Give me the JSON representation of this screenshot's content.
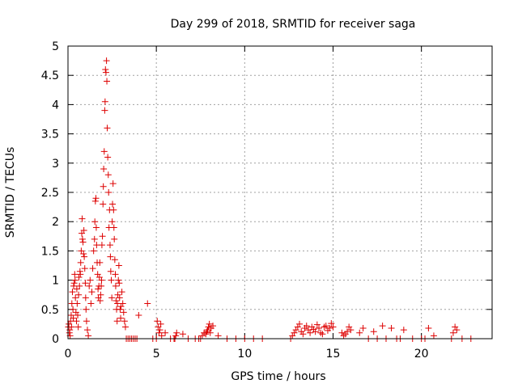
{
  "chart_data": {
    "type": "scatter",
    "title": "Day 299 of 2018, SRMTID for receiver saga",
    "xlabel": "GPS time / hours",
    "ylabel": "SRMTID / TECUs",
    "xlim": [
      0,
      24
    ],
    "ylim": [
      0,
      5
    ],
    "x_ticks": [
      0,
      5,
      10,
      15,
      20
    ],
    "y_ticks": [
      0,
      0.5,
      1,
      1.5,
      2,
      2.5,
      3,
      3.5,
      4,
      4.5,
      5
    ],
    "x_tick_labels": [
      "0",
      "5",
      "10",
      "15",
      "20"
    ],
    "y_tick_labels": [
      "0",
      "0.5",
      "1",
      "1.5",
      "2",
      "2.5",
      "3",
      "3.5",
      "4",
      "4.5",
      "5"
    ],
    "grid": true,
    "marker": "+",
    "series": [
      {
        "name": "SRMTID",
        "color": "#dd0000",
        "x": [
          0.02,
          0.05,
          0.08,
          0.1,
          0.12,
          0.15,
          0.18,
          0.2,
          0.22,
          0.25,
          0.28,
          0.3,
          0.32,
          0.35,
          0.38,
          0.4,
          0.42,
          0.45,
          0.48,
          0.5,
          0.52,
          0.55,
          0.58,
          0.6,
          0.62,
          0.65,
          0.68,
          0.7,
          0.72,
          0.75,
          0.78,
          0.8,
          0.82,
          0.85,
          0.88,
          0.9,
          0.92,
          0.95,
          0.98,
          1.0,
          1.02,
          1.05,
          1.1,
          1.15,
          1.2,
          1.25,
          1.3,
          1.35,
          1.4,
          1.45,
          1.5,
          1.52,
          1.55,
          1.58,
          1.6,
          1.62,
          1.65,
          1.68,
          1.7,
          1.72,
          1.75,
          1.78,
          1.8,
          1.82,
          1.85,
          1.88,
          1.9,
          1.92,
          1.95,
          1.98,
          2.0,
          2.02,
          2.05,
          2.08,
          2.1,
          2.12,
          2.15,
          2.18,
          2.2,
          2.22,
          2.25,
          2.28,
          2.3,
          2.32,
          2.35,
          2.38,
          2.4,
          2.42,
          2.45,
          2.48,
          2.5,
          2.52,
          2.55,
          2.58,
          2.6,
          2.62,
          2.65,
          2.68,
          2.7,
          2.72,
          2.75,
          2.78,
          2.8,
          2.82,
          2.85,
          2.88,
          2.9,
          2.92,
          2.95,
          2.98,
          3.0,
          3.05,
          3.1,
          3.15,
          3.2,
          3.25,
          3.3,
          3.4,
          3.5,
          3.6,
          3.7,
          3.8,
          3.9,
          4.0,
          4.5,
          4.8,
          5.0,
          5.05,
          5.1,
          5.15,
          5.2,
          5.25,
          5.3,
          5.5,
          5.8,
          6.0,
          6.05,
          6.1,
          6.15,
          6.5,
          6.8,
          7.2,
          7.4,
          7.5,
          7.6,
          7.7,
          7.8,
          7.85,
          7.9,
          7.95,
          8.0,
          8.05,
          8.1,
          8.2,
          8.5,
          9.0,
          9.5,
          10.0,
          10.5,
          11.0,
          12.6,
          12.7,
          12.8,
          12.9,
          13.0,
          13.1,
          13.2,
          13.3,
          13.4,
          13.5,
          13.6,
          13.7,
          13.8,
          13.9,
          14.0,
          14.1,
          14.2,
          14.3,
          14.4,
          14.5,
          14.6,
          14.7,
          14.8,
          14.9,
          15.0,
          15.5,
          15.6,
          15.7,
          15.8,
          15.9,
          16.0,
          16.5,
          16.7,
          17.0,
          17.3,
          17.5,
          17.8,
          18.0,
          18.3,
          18.6,
          18.8,
          19.0,
          19.5,
          20.0,
          20.2,
          20.4,
          20.7,
          21.7,
          21.8,
          21.9,
          22.0,
          22.3,
          22.8
        ],
        "y": [
          0.2,
          0.25,
          0.1,
          0.15,
          0.05,
          0.3,
          0.4,
          0.2,
          0.6,
          0.8,
          0.5,
          0.35,
          0.9,
          0.95,
          1.1,
          1.0,
          0.7,
          0.45,
          0.3,
          0.85,
          0.6,
          0.4,
          0.2,
          0.75,
          1.05,
          0.9,
          1.15,
          1.1,
          1.3,
          1.5,
          1.8,
          2.05,
          1.7,
          1.65,
          1.45,
          1.85,
          1.4,
          1.2,
          0.95,
          0.7,
          0.5,
          0.3,
          0.15,
          0.05,
          0.9,
          1.0,
          0.6,
          0.8,
          1.2,
          1.5,
          1.7,
          2.0,
          2.35,
          2.4,
          1.9,
          1.6,
          1.3,
          1.1,
          0.85,
          0.7,
          0.9,
          1.05,
          1.3,
          0.65,
          0.75,
          0.9,
          1.0,
          1.6,
          1.75,
          2.3,
          2.6,
          2.9,
          3.2,
          3.9,
          4.05,
          4.6,
          4.55,
          4.75,
          4.4,
          3.6,
          3.1,
          2.8,
          2.5,
          1.9,
          2.2,
          1.6,
          1.4,
          1.15,
          1.0,
          0.7,
          2.0,
          2.3,
          2.65,
          2.2,
          1.9,
          1.7,
          1.35,
          1.1,
          0.9,
          0.65,
          0.5,
          0.3,
          0.6,
          0.75,
          1.0,
          1.25,
          0.95,
          0.7,
          0.5,
          0.35,
          0.55,
          0.8,
          0.6,
          0.45,
          0.3,
          0.2,
          0.0,
          0.0,
          0.0,
          0.0,
          0.0,
          0.0,
          0.0,
          0.4,
          0.6,
          0.0,
          0.0,
          0.3,
          0.2,
          0.1,
          0.15,
          0.25,
          0.05,
          0.1,
          0.0,
          0.0,
          0.0,
          0.05,
          0.1,
          0.08,
          0.0,
          0.0,
          0.0,
          0.0,
          0.05,
          0.1,
          0.08,
          0.12,
          0.15,
          0.2,
          0.25,
          0.1,
          0.18,
          0.22,
          0.05,
          0.0,
          0.0,
          0.0,
          0.0,
          0.0,
          0.0,
          0.05,
          0.1,
          0.15,
          0.2,
          0.25,
          0.12,
          0.08,
          0.18,
          0.22,
          0.15,
          0.1,
          0.2,
          0.16,
          0.12,
          0.24,
          0.18,
          0.1,
          0.08,
          0.2,
          0.22,
          0.14,
          0.18,
          0.26,
          0.2,
          0.1,
          0.05,
          0.08,
          0.12,
          0.2,
          0.15,
          0.1,
          0.18,
          0.0,
          0.12,
          0.0,
          0.22,
          0.0,
          0.18,
          0.0,
          0.0,
          0.15,
          0.0,
          0.0,
          0.0,
          0.18,
          0.05,
          0.0,
          0.1,
          0.2,
          0.15,
          0.0,
          0.0
        ]
      }
    ]
  }
}
